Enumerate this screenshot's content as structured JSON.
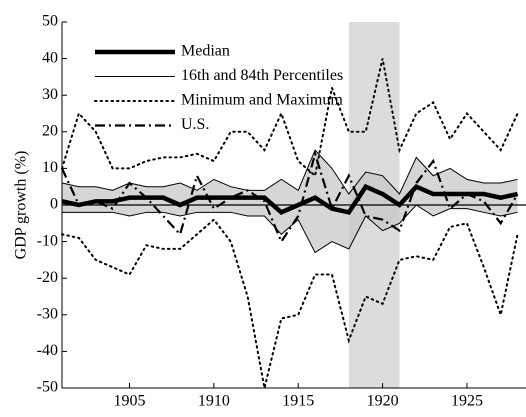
{
  "chart_data": {
    "type": "line",
    "y_label": "GDP growth (%)",
    "x": [
      1901,
      1902,
      1903,
      1904,
      1905,
      1906,
      1907,
      1908,
      1909,
      1910,
      1911,
      1912,
      1913,
      1914,
      1915,
      1916,
      1917,
      1918,
      1919,
      1920,
      1921,
      1922,
      1923,
      1924,
      1925,
      1926,
      1927,
      1928
    ],
    "xlim": [
      1901,
      1928.5
    ],
    "xticks": [
      1905,
      1910,
      1915,
      1920,
      1925
    ],
    "ylim": [
      -50,
      50
    ],
    "yticks": [
      -50,
      -40,
      -30,
      -20,
      -10,
      0,
      10,
      20,
      30,
      40,
      50
    ],
    "shade": [
      1918,
      1921
    ],
    "shade_color": "#dcdcdc",
    "band_color": "#c8c8c8",
    "series": [
      {
        "name": "Median",
        "style": "thick",
        "color": "#000000",
        "values": [
          1,
          0,
          1,
          1,
          2,
          2,
          2,
          0,
          2,
          2,
          2,
          2,
          2,
          -2,
          0,
          2,
          -1,
          -2,
          5,
          3,
          0,
          5,
          3,
          3,
          3,
          3,
          2,
          3
        ]
      },
      {
        "name": "16th and 84th Percentiles",
        "style": "band",
        "color": "#000000",
        "upper": [
          6,
          5,
          5,
          4,
          6,
          5,
          5,
          6,
          4,
          7,
          5,
          4,
          4,
          7,
          4,
          15,
          10,
          3,
          9,
          8,
          3,
          13,
          8,
          10,
          7,
          6,
          6,
          7
        ],
        "lower": [
          -2,
          -2,
          -2,
          -2,
          -3,
          -2,
          -2,
          -3,
          -2,
          -2,
          -2,
          -3,
          -3,
          -8,
          -4,
          -13,
          -10,
          -12,
          -3,
          -7,
          -5,
          0,
          -3,
          -1,
          -1,
          -2,
          -3,
          -2
        ]
      },
      {
        "name": "Minimum and Maximum",
        "style": "dotted",
        "color": "#000000",
        "upper": [
          10,
          25,
          20,
          10,
          10,
          12,
          13,
          13,
          14,
          12,
          20,
          20,
          15,
          25,
          12,
          8,
          32,
          20,
          20,
          40,
          15,
          25,
          28,
          18,
          25,
          20,
          15,
          25
        ],
        "lower": [
          -8,
          -9,
          -15,
          -17,
          -19,
          -11,
          -12,
          -12,
          -8,
          -4,
          -10,
          -25,
          -50,
          -31,
          -30,
          -19,
          -19,
          -37,
          -25,
          -27,
          -15,
          -14,
          -15,
          -6,
          -5,
          -17,
          -30,
          -8
        ]
      },
      {
        "name": "U.S.",
        "style": "dashdot",
        "color": "#000000",
        "values": [
          10,
          0,
          1,
          -1,
          6,
          2,
          -3,
          -8,
          8,
          -1,
          2,
          4,
          1,
          -10,
          -3,
          14,
          -1,
          8,
          -3,
          -4,
          -7,
          6,
          12,
          -1,
          3,
          1,
          -5,
          3
        ]
      }
    ]
  }
}
